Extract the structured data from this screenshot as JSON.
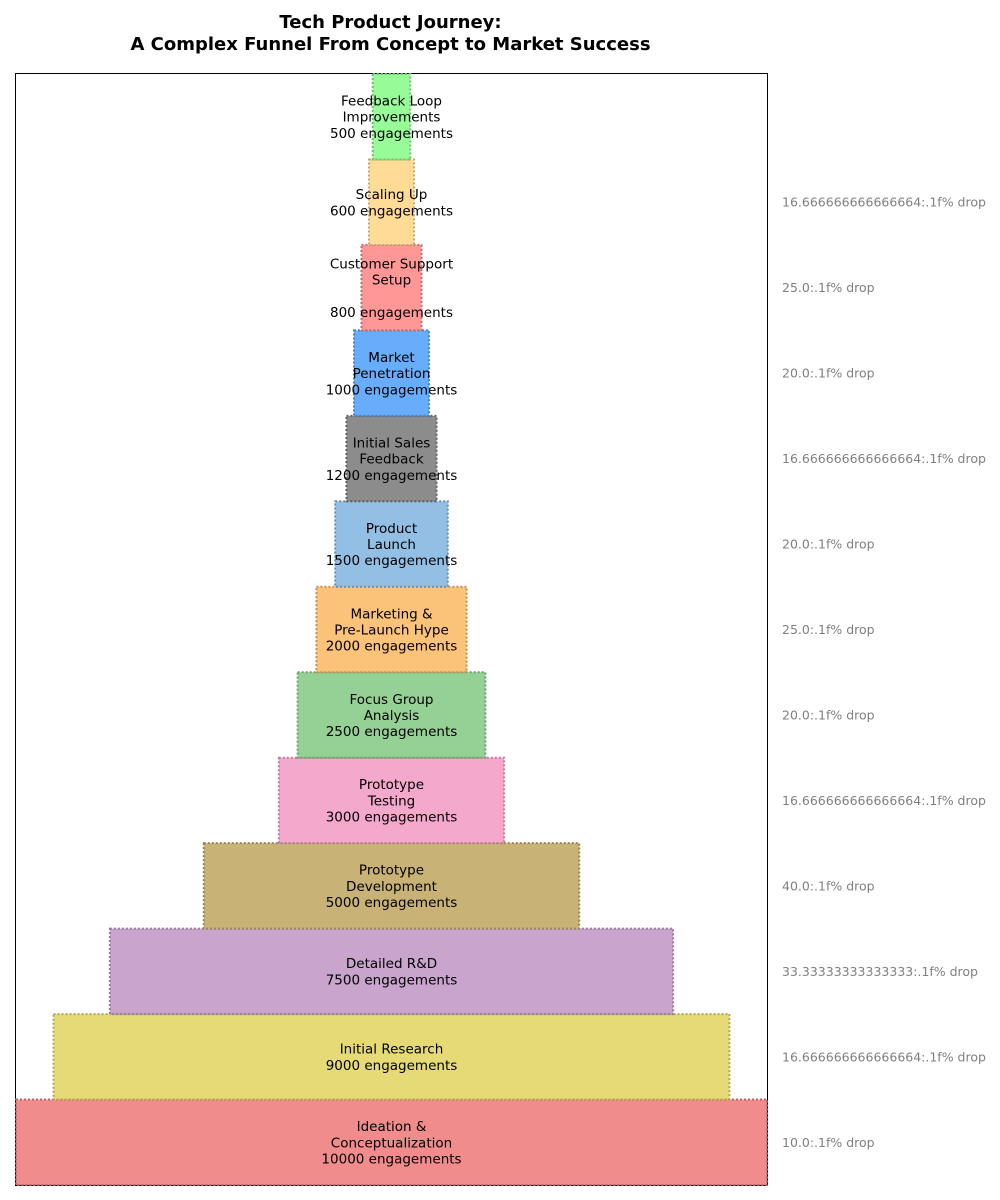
{
  "chart_data": {
    "type": "funnel",
    "title_lines": [
      "Tech Product Journey:",
      "A Complex Funnel From Concept to Market Success"
    ],
    "value_unit": "engagements",
    "stages": [
      {
        "label_lines": [
          "Ideation &",
          "Conceptualization"
        ],
        "value": 10000,
        "color": "#F08080"
      },
      {
        "label_lines": [
          "Initial Research"
        ],
        "value": 9000,
        "color": "#E2D667"
      },
      {
        "label_lines": [
          "Detailed R&D"
        ],
        "value": 7500,
        "color": "#C39BC9"
      },
      {
        "label_lines": [
          "Prototype",
          "Development"
        ],
        "value": 5000,
        "color": "#C3AA67"
      },
      {
        "label_lines": [
          "Prototype",
          "Testing"
        ],
        "value": 3000,
        "color": "#F39FC7"
      },
      {
        "label_lines": [
          "Focus Group",
          "Analysis"
        ],
        "value": 2500,
        "color": "#8ACC8A"
      },
      {
        "label_lines": [
          "Marketing &",
          "Pre-Launch Hype"
        ],
        "value": 2000,
        "color": "#FBBB6A"
      },
      {
        "label_lines": [
          "Product",
          "Launch"
        ],
        "value": 1500,
        "color": "#86B8E0"
      },
      {
        "label_lines": [
          "Initial Sales",
          "Feedback"
        ],
        "value": 1200,
        "color": "#7F7F7F"
      },
      {
        "label_lines": [
          "Market",
          "Penetration"
        ],
        "value": 1000,
        "color": "#57A4FB"
      },
      {
        "label_lines": [
          "Customer Support",
          "Setup",
          ""
        ],
        "value": 800,
        "color": "#FF8C8C"
      },
      {
        "label_lines": [
          "Scaling Up"
        ],
        "value": 600,
        "color": "#FFD78A"
      },
      {
        "label_lines": [
          "Feedback Loop",
          "Improvements"
        ],
        "value": 500,
        "color": "#8CFB8C"
      }
    ],
    "drop_labels": [
      "10.0:.1f% drop",
      "16.666666666666664:.1f% drop",
      "33.33333333333333:.1f% drop",
      "40.0:.1f% drop",
      "16.666666666666664:.1f% drop",
      "20.0:.1f% drop",
      "25.0:.1f% drop",
      "20.0:.1f% drop",
      "16.666666666666664:.1f% drop",
      "20.0:.1f% drop",
      "25.0:.1f% drop",
      "16.666666666666664:.1f% drop"
    ]
  }
}
